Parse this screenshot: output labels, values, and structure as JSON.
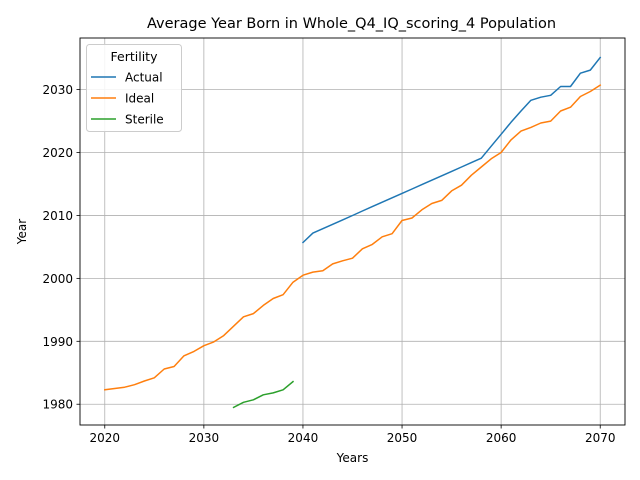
{
  "chart_data": {
    "type": "line",
    "title": "Average Year Born in Whole_Q4_IQ_scoring_4 Population",
    "xlabel": "Years",
    "ylabel": "Year",
    "xlim": [
      2017.5,
      2072.5
    ],
    "ylim": [
      1976.7,
      2038.2
    ],
    "xticks": [
      2020,
      2030,
      2040,
      2050,
      2060,
      2070
    ],
    "yticks": [
      1980,
      1990,
      2000,
      2010,
      2020,
      2030
    ],
    "grid": true,
    "legend": {
      "title": "Fertility",
      "placement": "top-left"
    },
    "series": [
      {
        "name": "Actual",
        "color": "#1f77b4",
        "x": [
          2040,
          2041,
          2042,
          2043,
          2044,
          2045,
          2046,
          2047,
          2048,
          2049,
          2050,
          2051,
          2052,
          2053,
          2054,
          2055,
          2056,
          2057,
          2058,
          2059,
          2060,
          2061,
          2062,
          2063,
          2064,
          2065,
          2066,
          2067,
          2068,
          2069,
          2070
        ],
        "y": [
          2005.7,
          2007.2,
          2007.9,
          2008.6,
          2009.3,
          2010.0,
          2010.7,
          2011.4,
          2012.1,
          2012.8,
          2013.5,
          2014.2,
          2014.9,
          2015.6,
          2016.3,
          2017.0,
          2017.7,
          2018.4,
          2019.1,
          2021.0,
          2022.9,
          2024.8,
          2026.6,
          2028.3,
          2028.8,
          2029.1,
          2030.5,
          2030.5,
          2032.6,
          2033.1,
          2035.1
        ]
      },
      {
        "name": "Ideal",
        "color": "#ff7f0e",
        "x": [
          2020,
          2021,
          2022,
          2023,
          2024,
          2025,
          2026,
          2027,
          2028,
          2029,
          2030,
          2031,
          2032,
          2033,
          2034,
          2035,
          2036,
          2037,
          2038,
          2039,
          2040,
          2041,
          2042,
          2043,
          2044,
          2045,
          2046,
          2047,
          2048,
          2049,
          2050,
          2051,
          2052,
          2053,
          2054,
          2055,
          2056,
          2057,
          2058,
          2059,
          2060,
          2061,
          2062,
          2063,
          2064,
          2065,
          2066,
          2067,
          2068,
          2069,
          2070
        ],
        "y": [
          1982.3,
          1982.5,
          1982.7,
          1983.1,
          1983.7,
          1984.2,
          1985.6,
          1986.0,
          1987.7,
          1988.4,
          1989.3,
          1989.9,
          1990.9,
          1992.4,
          1993.9,
          1994.4,
          1995.7,
          1996.8,
          1997.4,
          1999.4,
          2000.5,
          2001.0,
          2001.2,
          2002.3,
          2002.8,
          2003.2,
          2004.7,
          2005.4,
          2006.6,
          2007.1,
          2009.2,
          2009.6,
          2010.9,
          2011.9,
          2012.4,
          2013.9,
          2014.8,
          2016.4,
          2017.7,
          2019.0,
          2020.0,
          2022.0,
          2023.4,
          2024.0,
          2024.7,
          2025.0,
          2026.6,
          2027.2,
          2028.9,
          2029.7,
          2030.7
        ]
      },
      {
        "name": "Sterile",
        "color": "#2ca02c",
        "x": [
          2033,
          2034,
          2035,
          2036,
          2037,
          2038,
          2039
        ],
        "y": [
          1979.5,
          1980.3,
          1980.7,
          1981.5,
          1981.8,
          1982.3,
          1983.6
        ]
      }
    ]
  }
}
